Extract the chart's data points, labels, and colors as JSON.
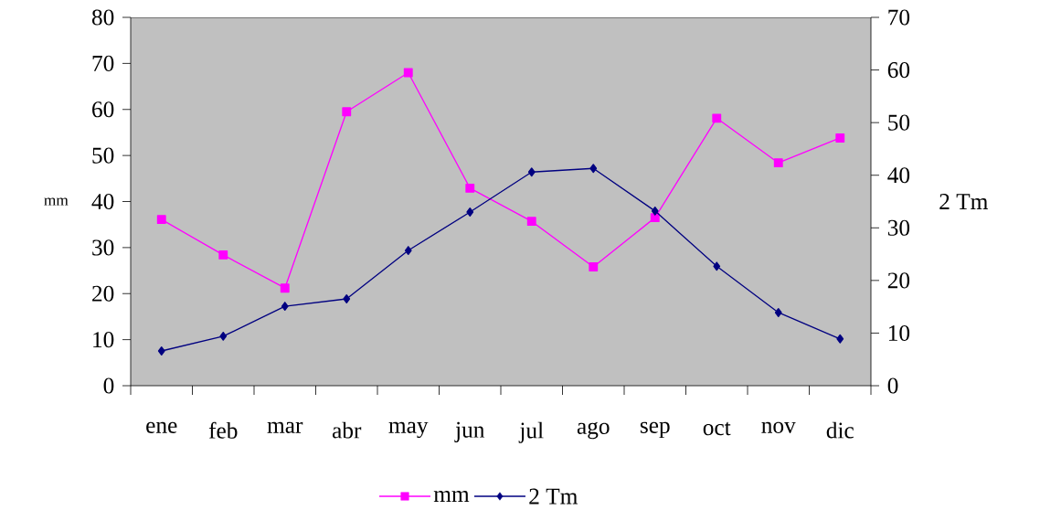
{
  "chart_data": {
    "type": "line",
    "categories": [
      "ene",
      "feb",
      "mar",
      "abr",
      "may",
      "jun",
      "jul",
      "ago",
      "sep",
      "oct",
      "nov",
      "dic"
    ],
    "series": [
      {
        "name": "mm",
        "color": "#ff00ff",
        "marker": "square",
        "values": [
          36.1,
          28.4,
          21.2,
          59.5,
          68,
          42.9,
          35.7,
          25.8,
          36.5,
          58.1,
          48.4,
          53.8
        ]
      },
      {
        "name": "2 Tm",
        "color": "#000080",
        "marker": "diamond",
        "axis": "y2",
        "values": [
          6.6,
          9.4,
          15.1,
          16.5,
          25.7,
          33.0,
          40.6,
          41.3,
          33.2,
          22.7,
          13.9,
          8.9
        ]
      }
    ],
    "ylabel": "mm",
    "y2label": "2 Tm",
    "ylim": [
      0,
      80
    ],
    "yticks": [
      0,
      10,
      20,
      30,
      40,
      50,
      60,
      70,
      80
    ],
    "y2lim": [
      0,
      70
    ],
    "y2ticks": [
      0,
      10,
      20,
      30,
      40,
      50,
      60,
      70
    ],
    "grid": false,
    "legend": "bottom"
  }
}
